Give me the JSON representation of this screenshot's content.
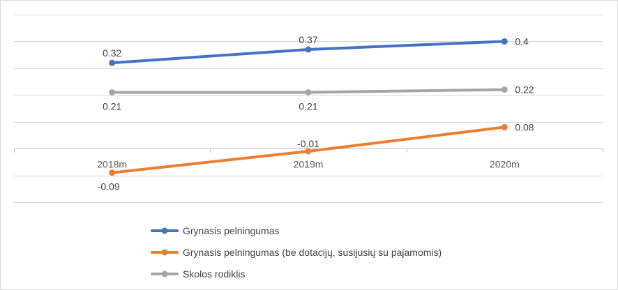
{
  "chart_data": {
    "type": "line",
    "categories": [
      "2018m",
      "2019m",
      "2020m"
    ],
    "ylim": [
      -0.2,
      0.5
    ],
    "grid": true,
    "legend_position": "bottom",
    "title": "",
    "xlabel": "",
    "ylabel": "",
    "series": [
      {
        "name": "Grynasis pelningumas",
        "values": [
          0.32,
          0.37,
          0.4
        ],
        "labels": [
          "0.32",
          "0.37",
          "0.4"
        ],
        "color": "#4472C4"
      },
      {
        "name": "Grynasis pelningumas (be dotacijų, susijusių su pajamomis)",
        "values": [
          -0.09,
          -0.01,
          0.08
        ],
        "labels": [
          "-0.09",
          "-0.01",
          "0.08"
        ],
        "color": "#ED7D31"
      },
      {
        "name": "Skolos rodiklis",
        "values": [
          0.21,
          0.21,
          0.22
        ],
        "labels": [
          "0.21",
          "0.21",
          "0.22"
        ],
        "color": "#A5A5A5"
      }
    ]
  }
}
